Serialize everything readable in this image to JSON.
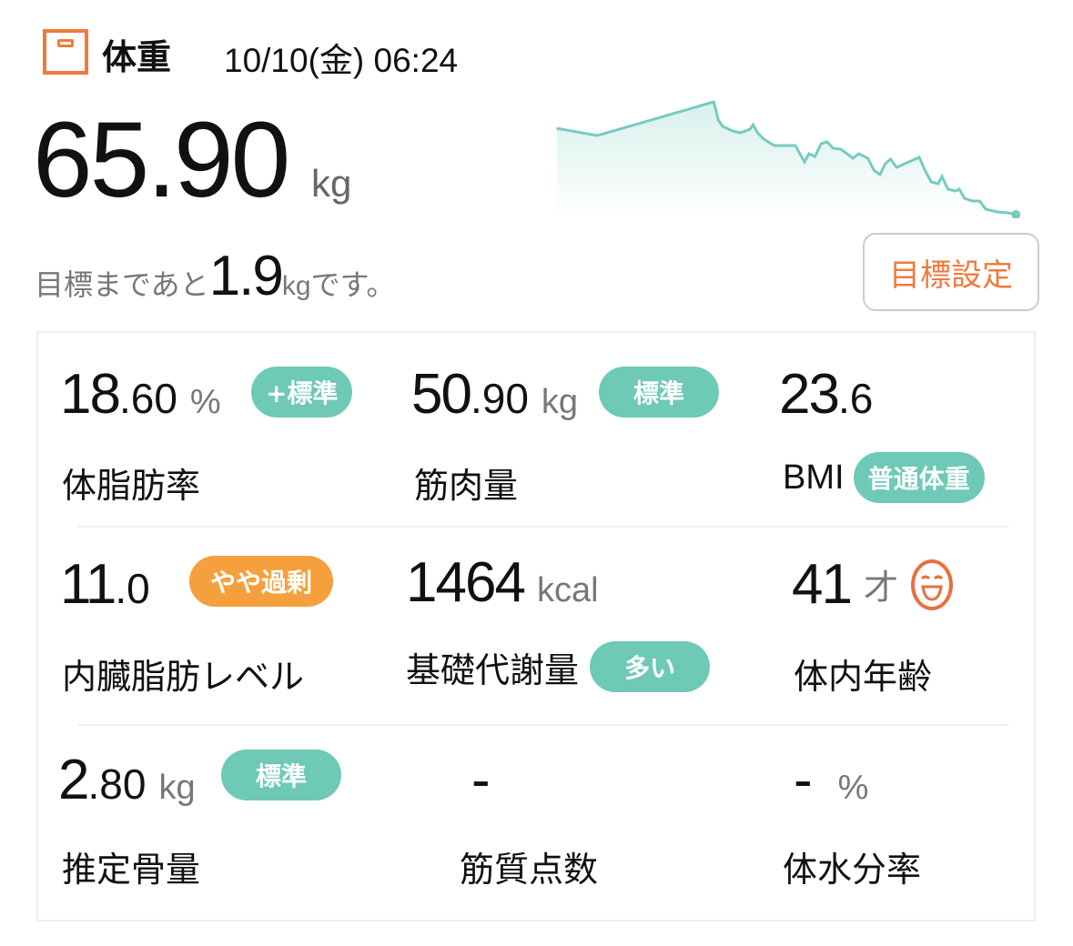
{
  "header": {
    "title": "体重",
    "datetime": "10/10(金) 06:24",
    "icon": "scale-icon"
  },
  "weight": {
    "value": "65.90",
    "unit": "kg"
  },
  "goal": {
    "prefix": "目標まであと",
    "remaining": "1.9",
    "unit": "kg",
    "suffix": "です。",
    "button": "目標設定"
  },
  "colors": {
    "accent": "#f07a3e",
    "teal": "#6fc9b7",
    "orange": "#f5a03c"
  },
  "metrics": [
    {
      "int": "18",
      "dec": ".60",
      "unit": "%",
      "badge": "+標準",
      "label": "体脂肪率"
    },
    {
      "int": "50",
      "dec": ".90",
      "unit": "kg",
      "badge": "標準",
      "label": "筋肉量"
    },
    {
      "int": "23",
      "dec": ".6",
      "unit": "",
      "badge": "普通体重",
      "label": "BMI"
    },
    {
      "int": "11",
      "dec": ".0",
      "unit": "",
      "badge": "やや過剰",
      "label": "内臓脂肪レベル"
    },
    {
      "int": "1464",
      "dec": "",
      "unit": "kcal",
      "badge": "多い",
      "label": "基礎代謝量"
    },
    {
      "int": "41",
      "dec": "",
      "unit": "才",
      "badge": "",
      "label": "体内年齢",
      "icon": "smile-face-icon"
    },
    {
      "int": "2",
      "dec": ".80",
      "unit": "kg",
      "badge": "標準",
      "label": "推定骨量"
    },
    {
      "int": "-",
      "dec": "",
      "unit": "",
      "badge": "",
      "label": "筋質点数"
    },
    {
      "int": "-",
      "dec": "",
      "unit": "%",
      "badge": "",
      "label": "体水分率"
    }
  ]
}
